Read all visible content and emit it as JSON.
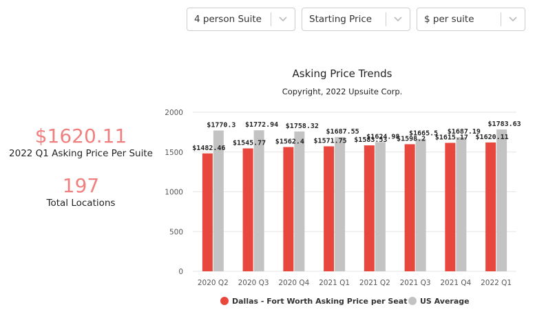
{
  "filters": {
    "suite_type": "4 person Suite",
    "metric": "Starting Price",
    "unit": "$ per suite"
  },
  "stats": {
    "asking_price_value": "$1620.11",
    "asking_price_label": "2022 Q1 Asking Price Per Suite",
    "locations_value": "197",
    "locations_label": "Total Locations"
  },
  "colors": {
    "series_1": "#e8473e",
    "series_2": "#c3c3c3",
    "stat_accent": "#f08080"
  },
  "chart_data": {
    "type": "bar",
    "title": "Asking Price Trends",
    "subtitle": "Copyright, 2022 Upsuite Corp.",
    "categories": [
      "2020 Q2",
      "2020 Q3",
      "2020 Q4",
      "2021 Q1",
      "2021 Q2",
      "2021 Q3",
      "2021 Q4",
      "2022 Q1"
    ],
    "series": [
      {
        "name": "Dallas - Fort Worth Asking Price per Seat",
        "values": [
          1482.46,
          1545.77,
          1562.4,
          1571.75,
          1583.53,
          1598.2,
          1615.17,
          1620.11
        ],
        "labels": [
          "$1482.46",
          "$1545.77",
          "$1562.4",
          "$1571.75",
          "$1583.53",
          "$1598.2",
          "$1615.17",
          "$1620.11"
        ]
      },
      {
        "name": "US Average",
        "values": [
          1770.3,
          1772.94,
          1758.32,
          1687.55,
          1624.98,
          1665.5,
          1687.19,
          1783.63
        ],
        "labels": [
          "$1770.3",
          "$1772.94",
          "$1758.32",
          "$1687.55",
          "$1624.98",
          "$1665.5",
          "$1687.19",
          "$1783.63"
        ]
      }
    ],
    "yticks": [
      "0",
      "500",
      "1000",
      "1500",
      "2000"
    ],
    "ylim": [
      0,
      2000
    ],
    "grid": true,
    "legend_position": "bottom"
  }
}
